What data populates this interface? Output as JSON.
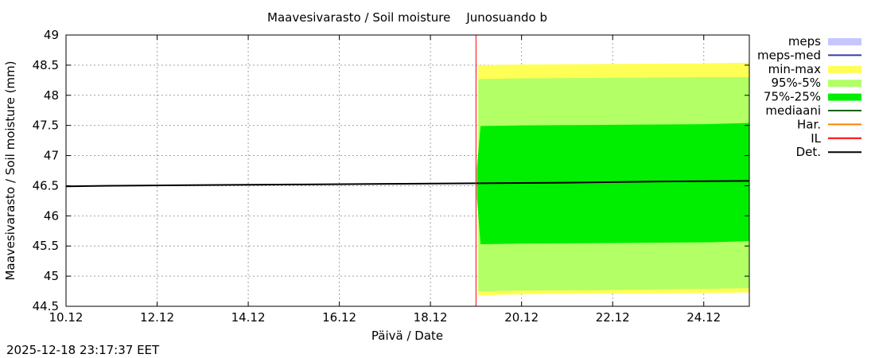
{
  "chart_data": {
    "type": "area",
    "title": "Maavesivarasto / Soil moisture",
    "station": "Junosuando b",
    "xlabel": "Päivä / Date",
    "ylabel": "Maavesivarasto / Soil moisture (mm)",
    "timestamp": "2025-12-18 23:17:37 EET",
    "x_range_days": [
      10.0,
      25.0
    ],
    "ylim": [
      44.5,
      49.0
    ],
    "x_ticks": [
      {
        "day": 10,
        "label": "10.12"
      },
      {
        "day": 12,
        "label": "12.12"
      },
      {
        "day": 14,
        "label": "14.12"
      },
      {
        "day": 16,
        "label": "16.12"
      },
      {
        "day": 18,
        "label": "18.12"
      },
      {
        "day": 20,
        "label": "20.12"
      },
      {
        "day": 22,
        "label": "22.12"
      },
      {
        "day": 24,
        "label": "24.12"
      }
    ],
    "y_ticks": [
      {
        "value": 44.5,
        "label": "44.5"
      },
      {
        "value": 45.0,
        "label": "45"
      },
      {
        "value": 45.5,
        "label": "45.5"
      },
      {
        "value": 46.0,
        "label": "46"
      },
      {
        "value": 46.5,
        "label": "46.5"
      },
      {
        "value": 47.0,
        "label": "47"
      },
      {
        "value": 47.5,
        "label": "47.5"
      },
      {
        "value": 48.0,
        "label": "48"
      },
      {
        "value": 48.5,
        "label": "48.5"
      },
      {
        "value": 49.0,
        "label": "49"
      }
    ],
    "forecast_start_day": 19.0,
    "series": [
      {
        "name": "Det.",
        "kind": "line",
        "color": "#000000",
        "x": [
          10.0,
          11.0,
          13.0,
          15.0,
          17.0,
          19.0,
          21.0,
          23.0,
          25.0
        ],
        "values": [
          46.49,
          46.5,
          46.51,
          46.52,
          46.53,
          46.54,
          46.55,
          46.57,
          46.58
        ]
      },
      {
        "name": "min-max",
        "kind": "band",
        "color": "#ffff55",
        "x": [
          19.05,
          19.1,
          20.0,
          22.0,
          24.0,
          25.0
        ],
        "low": [
          44.68,
          44.68,
          44.7,
          44.71,
          44.72,
          44.73
        ],
        "high": [
          48.5,
          48.5,
          48.51,
          48.52,
          48.53,
          48.54
        ]
      },
      {
        "name": "95%-5%",
        "kind": "band",
        "color": "#b2ff66",
        "x": [
          19.05,
          19.1,
          20.0,
          22.0,
          24.0,
          25.0
        ],
        "low": [
          44.75,
          44.75,
          44.76,
          44.77,
          44.79,
          44.8
        ],
        "high": [
          48.26,
          48.27,
          48.28,
          48.29,
          48.3,
          48.3
        ]
      },
      {
        "name": "75%-25%",
        "kind": "band",
        "color": "#00ee00",
        "x": [
          19.02,
          19.1,
          20.0,
          22.0,
          24.0,
          25.0
        ],
        "low": [
          46.3,
          45.53,
          45.54,
          45.55,
          45.56,
          45.58
        ],
        "high": [
          46.8,
          47.49,
          47.5,
          47.51,
          47.52,
          47.54
        ]
      },
      {
        "name": "IL",
        "kind": "vline",
        "color": "#ff0000",
        "x": [
          19.0
        ]
      }
    ],
    "legend": [
      {
        "label": "meps",
        "swatch": "box",
        "color": "#c6c6ff"
      },
      {
        "label": "meps-med",
        "swatch": "line",
        "color": "#3a3aa8"
      },
      {
        "label": "min-max",
        "swatch": "box",
        "color": "#ffff55"
      },
      {
        "label": "95%-5%",
        "swatch": "box",
        "color": "#b2ff66"
      },
      {
        "label": "75%-25%",
        "swatch": "box",
        "color": "#00ee00"
      },
      {
        "label": "mediaani",
        "swatch": "line",
        "color": "#006400"
      },
      {
        "label": "Har.",
        "swatch": "line",
        "color": "#ff8000"
      },
      {
        "label": "IL",
        "swatch": "line",
        "color": "#ff0000"
      },
      {
        "label": "Det.",
        "swatch": "line",
        "color": "#000000"
      }
    ],
    "legend_position": "outside-right",
    "grid": true
  }
}
